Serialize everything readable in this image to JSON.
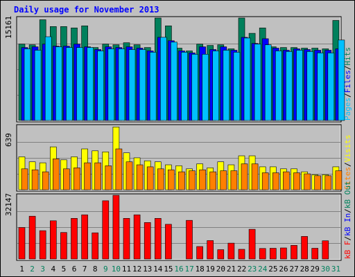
{
  "title": "Daily usage for November 2013",
  "colors": {
    "hits": "#00805c",
    "files": "#0000ff",
    "pages": "#00c0ff",
    "visits": "#ffff00",
    "sites": "#ff8000",
    "kbF": "#ff0000",
    "kbIn": "#0000ff",
    "kbOut": "#00805c",
    "weekday_label": "#000000",
    "weekend_label": "#00805c",
    "panel_bg": "#c0c0c0",
    "gridline": "#808080"
  },
  "chart_data": [
    {
      "type": "bar",
      "title": "Daily usage for November 2013",
      "categories": [
        "1",
        "2",
        "3",
        "4",
        "5",
        "6",
        "7",
        "8",
        "9",
        "10",
        "11",
        "12",
        "13",
        "14",
        "15",
        "16",
        "17",
        "18",
        "19",
        "20",
        "21",
        "22",
        "23",
        "24",
        "25",
        "26",
        "27",
        "28",
        "29",
        "30",
        "31"
      ],
      "weekend_days": [
        "2",
        "3",
        "9",
        "10",
        "16",
        "17",
        "23",
        "24",
        "30",
        "31"
      ],
      "ymax_label": "15161",
      "ylim": [
        0,
        15161
      ],
      "legend": [
        "Pages",
        "Files",
        "Hits"
      ],
      "legend_slashes": [
        "/",
        "/"
      ],
      "series": [
        {
          "name": "Hits",
          "values": [
            11300,
            11200,
            14900,
            13900,
            13900,
            13700,
            14000,
            10800,
            11300,
            11200,
            11500,
            11200,
            10800,
            15161,
            14000,
            10700,
            10300,
            11300,
            11100,
            11200,
            10600,
            15161,
            12900,
            13700,
            10900,
            10800,
            10800,
            10700,
            10700,
            10600,
            14800
          ]
        },
        {
          "name": "Files",
          "values": [
            10800,
            10900,
            11300,
            11000,
            11000,
            11300,
            10900,
            10500,
            10900,
            10800,
            10900,
            10700,
            10300,
            12300,
            11800,
            10300,
            10000,
            10900,
            10500,
            10900,
            10400,
            12300,
            11400,
            12100,
            10700,
            10400,
            10600,
            10500,
            10400,
            10400,
            10600
          ]
        },
        {
          "name": "Pages",
          "values": [
            10600,
            10400,
            12400,
            10900,
            10800,
            10800,
            10800,
            10300,
            10600,
            10600,
            10500,
            10500,
            10100,
            12300,
            11600,
            10100,
            9800,
            9800,
            10300,
            10400,
            10100,
            12200,
            11300,
            11200,
            10300,
            10200,
            10400,
            10200,
            10000,
            10000,
            11900
          ]
        }
      ],
      "pixel_heights_note": ""
    },
    {
      "type": "bar",
      "categories": [
        "1",
        "2",
        "3",
        "4",
        "5",
        "6",
        "7",
        "8",
        "9",
        "10",
        "11",
        "12",
        "13",
        "14",
        "15",
        "16",
        "17",
        "18",
        "19",
        "20",
        "21",
        "22",
        "23",
        "24",
        "25",
        "26",
        "27",
        "28",
        "29",
        "30",
        "31"
      ],
      "ymax_label": "639",
      "ylim": [
        0,
        639
      ],
      "legend": [
        "Sites",
        "Visits"
      ],
      "legend_slashes": [
        "/"
      ],
      "series": [
        {
          "name": "Visits",
          "values": [
            330,
            280,
            270,
            430,
            300,
            330,
            410,
            390,
            380,
            630,
            370,
            320,
            290,
            280,
            250,
            240,
            210,
            260,
            220,
            280,
            250,
            340,
            340,
            230,
            230,
            210,
            210,
            180,
            150,
            150,
            230
          ]
        },
        {
          "name": "Sites",
          "values": [
            210,
            200,
            180,
            310,
            210,
            220,
            270,
            270,
            240,
            410,
            280,
            250,
            230,
            210,
            200,
            180,
            190,
            200,
            180,
            190,
            190,
            260,
            260,
            170,
            170,
            180,
            170,
            160,
            140,
            140,
            190
          ]
        }
      ]
    },
    {
      "type": "bar",
      "categories": [
        "1",
        "2",
        "3",
        "4",
        "5",
        "6",
        "7",
        "8",
        "9",
        "10",
        "11",
        "12",
        "13",
        "14",
        "15",
        "16",
        "17",
        "18",
        "19",
        "20",
        "21",
        "22",
        "23",
        "24",
        "25",
        "26",
        "27",
        "28",
        "29",
        "30",
        "31"
      ],
      "ymax_label": "32147",
      "ylim": [
        0,
        32147
      ],
      "legend": [
        "kB F",
        "kB In",
        "kB Out"
      ],
      "legend_slashes": [
        "/",
        "/"
      ],
      "series": [
        {
          "name": "kB F",
          "values": [
            15900,
            21600,
            14300,
            19300,
            13400,
            20500,
            22300,
            13200,
            29400,
            32147,
            20500,
            22300,
            18400,
            20500,
            17500,
            0,
            19500,
            6300,
            9300,
            4700,
            8000,
            4900,
            15000,
            5300,
            5400,
            5600,
            6900,
            11400,
            5400,
            9200,
            0
          ]
        },
        {
          "name": "kB In",
          "values": [
            0,
            0,
            0,
            0,
            0,
            0,
            0,
            0,
            0,
            0,
            0,
            0,
            0,
            0,
            0,
            0,
            0,
            0,
            0,
            0,
            0,
            0,
            0,
            0,
            0,
            0,
            0,
            0,
            0,
            0,
            0
          ]
        },
        {
          "name": "kB Out",
          "values": [
            0,
            0,
            0,
            0,
            0,
            0,
            0,
            0,
            0,
            0,
            0,
            0,
            0,
            0,
            0,
            0,
            0,
            0,
            0,
            0,
            0,
            0,
            0,
            0,
            0,
            0,
            0,
            0,
            0,
            0,
            0
          ]
        }
      ]
    }
  ]
}
